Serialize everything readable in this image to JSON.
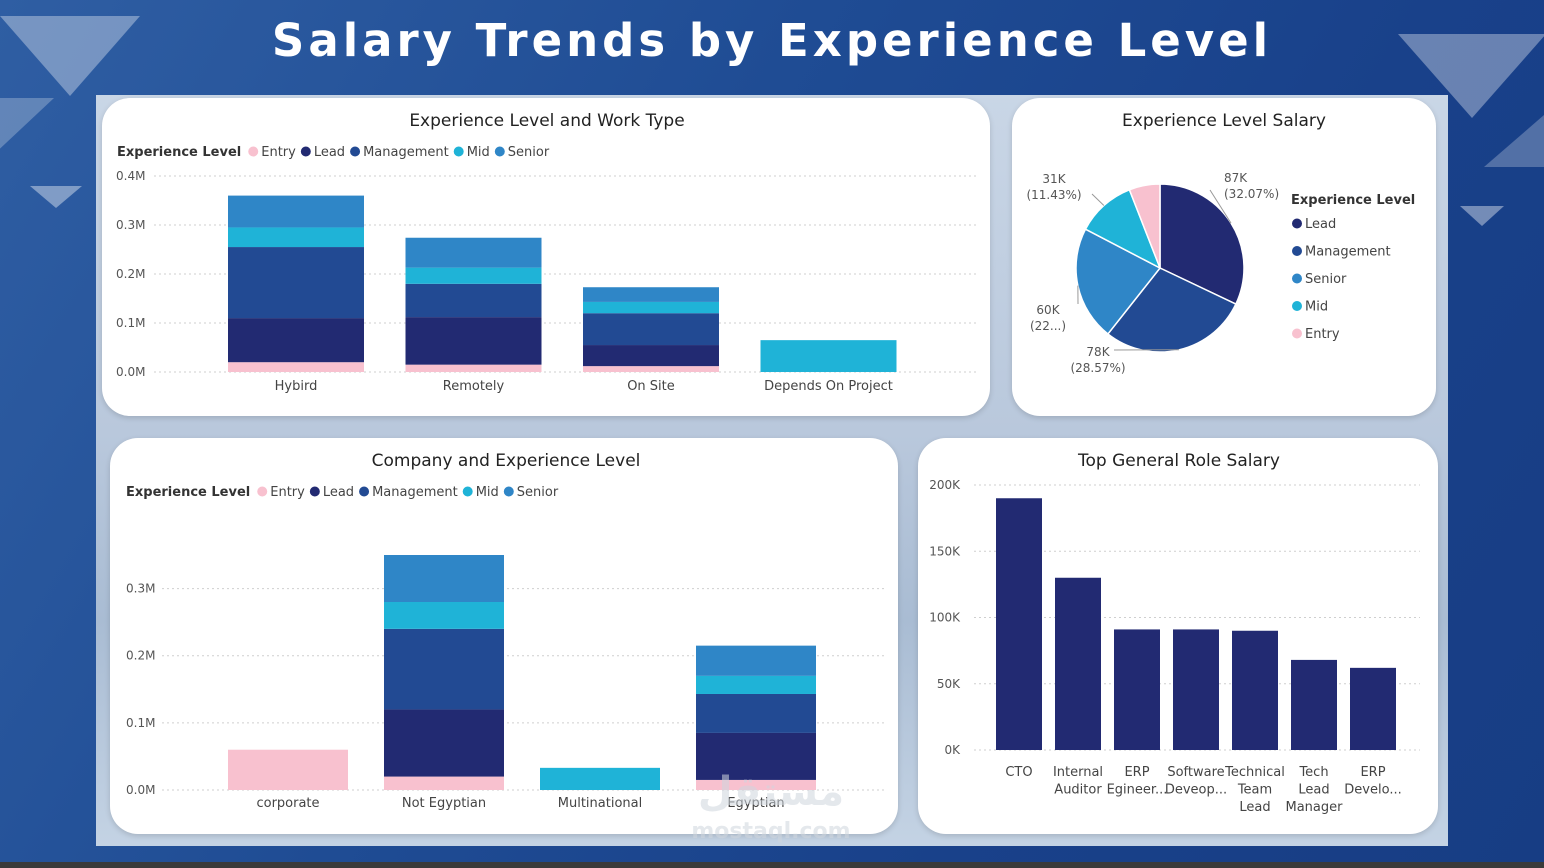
{
  "header": {
    "title": "Salary Trends by Experience Level"
  },
  "colors": {
    "Entry": "#f8c1cf",
    "Lead": "#222a72",
    "Management": "#224a93",
    "Mid": "#1fb3d7",
    "Senior": "#2f86c7"
  },
  "watermark": {
    "text": "mostaql.com"
  },
  "chart_data": [
    {
      "id": "work_type",
      "type": "bar",
      "stacked": true,
      "title": "Experience Level and Work Type",
      "legend_title": "Experience Level",
      "legend": [
        "Entry",
        "Lead",
        "Management",
        "Mid",
        "Senior"
      ],
      "categories": [
        "Hybird",
        "Remotely",
        "On Site",
        "Depends On Project"
      ],
      "series": [
        {
          "name": "Entry",
          "values": [
            0.02,
            0.015,
            0.012,
            0
          ]
        },
        {
          "name": "Lead",
          "values": [
            0.09,
            0.097,
            0.043,
            0
          ]
        },
        {
          "name": "Management",
          "values": [
            0.145,
            0.068,
            0.065,
            0
          ]
        },
        {
          "name": "Mid",
          "values": [
            0.04,
            0.033,
            0.023,
            0.065
          ]
        },
        {
          "name": "Senior",
          "values": [
            0.065,
            0.061,
            0.03,
            0
          ]
        }
      ],
      "yticks": [
        "0.0M",
        "0.1M",
        "0.2M",
        "0.3M",
        "0.4M"
      ],
      "ylim": [
        0,
        0.4
      ],
      "grid": true
    },
    {
      "id": "exp_salary",
      "type": "pie",
      "title": "Experience Level Salary",
      "legend_title": "Experience Level",
      "legend": [
        "Lead",
        "Management",
        "Senior",
        "Mid",
        "Entry"
      ],
      "slices": [
        {
          "name": "Lead",
          "value": 87,
          "percent": 32.07
        },
        {
          "name": "Management",
          "value": 78,
          "percent": 28.57
        },
        {
          "name": "Senior",
          "value": 60,
          "percent": 22.0
        },
        {
          "name": "Mid",
          "value": 31,
          "percent": 11.43
        },
        {
          "name": "Entry",
          "value": 16,
          "percent": 5.93
        }
      ],
      "data_labels": [
        {
          "value": "87K",
          "pct": "(32.07%)"
        },
        {
          "value": "78K",
          "pct": "(28.57%)"
        },
        {
          "value": "60K",
          "pct": "(22...)"
        },
        {
          "value": "31K",
          "pct": "(11.43%)"
        }
      ]
    },
    {
      "id": "company",
      "type": "bar",
      "stacked": true,
      "title": "Company and Experience Level",
      "legend_title": "Experience Level",
      "legend": [
        "Entry",
        "Lead",
        "Management",
        "Mid",
        "Senior"
      ],
      "categories": [
        "corporate",
        "Not Egyptian",
        "Multinational",
        "Egyptian"
      ],
      "series": [
        {
          "name": "Entry",
          "values": [
            0.06,
            0.02,
            0,
            0.015
          ]
        },
        {
          "name": "Lead",
          "values": [
            0,
            0.1,
            0,
            0.07
          ]
        },
        {
          "name": "Management",
          "values": [
            0,
            0.12,
            0,
            0.058
          ]
        },
        {
          "name": "Mid",
          "values": [
            0,
            0.04,
            0.033,
            0.027
          ]
        },
        {
          "name": "Senior",
          "values": [
            0,
            0.07,
            0,
            0.045
          ]
        }
      ],
      "yticks": [
        "0.0M",
        "0.1M",
        "0.2M",
        "0.3M"
      ],
      "ylim": [
        0,
        0.35
      ],
      "grid": true
    },
    {
      "id": "roles",
      "type": "bar",
      "title": "Top General Role Salary",
      "categories": [
        [
          "CTO"
        ],
        [
          "Internal",
          "Auditor"
        ],
        [
          "ERP",
          "Egineer..."
        ],
        [
          "Software",
          "Deveop..."
        ],
        [
          "Technical",
          "Team",
          "Lead"
        ],
        [
          "Tech",
          "Lead",
          "Manager"
        ],
        [
          "ERP",
          "Develo..."
        ]
      ],
      "values": [
        190000,
        130000,
        91000,
        91000,
        90000,
        68000,
        62000
      ],
      "yticks": [
        "0K",
        "50K",
        "100K",
        "150K",
        "200K"
      ],
      "ylim": [
        0,
        200000
      ],
      "color": "#222a72",
      "grid": true
    }
  ]
}
